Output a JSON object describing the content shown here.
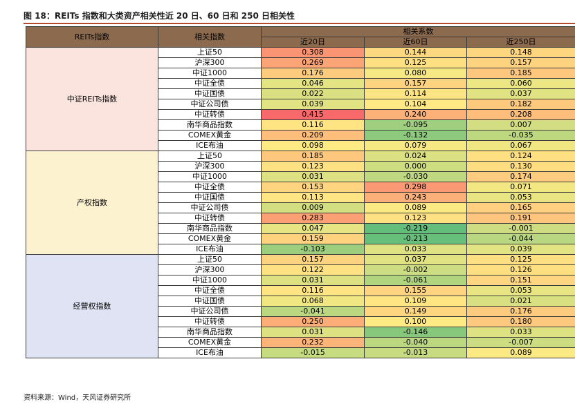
{
  "title": "图 18：REITs 指数和大类资产相关性近 20 日、60 日和 250 日相关性",
  "source": "资料来源：Wind，天风证券研究所",
  "headers": {
    "reits_index": "REITs指数",
    "related_index": "相关指数",
    "coef": "相关系数",
    "d20": "近20日",
    "d60": "近60日",
    "d250": "近250日"
  },
  "groups": [
    {
      "name": "中证REITs指数",
      "rows": [
        {
          "index": "上证50",
          "d20": "0.308",
          "d60": "0.144",
          "d250": "0.148"
        },
        {
          "index": "沪深300",
          "d20": "0.269",
          "d60": "0.125",
          "d250": "0.157"
        },
        {
          "index": "中证1000",
          "d20": "0.176",
          "d60": "0.080",
          "d250": "0.185"
        },
        {
          "index": "中证全债",
          "d20": "0.046",
          "d60": "0.157",
          "d250": "0.060"
        },
        {
          "index": "中证国债",
          "d20": "0.022",
          "d60": "0.114",
          "d250": "0.037"
        },
        {
          "index": "中证公司债",
          "d20": "0.039",
          "d60": "0.104",
          "d250": "0.182"
        },
        {
          "index": "中证转债",
          "d20": "0.415",
          "d60": "0.240",
          "d250": "0.208"
        },
        {
          "index": "南华商品指数",
          "d20": "0.116",
          "d60": "-0.095",
          "d250": "0.007"
        },
        {
          "index": "COMEX黄金",
          "d20": "0.209",
          "d60": "-0.132",
          "d250": "-0.035"
        },
        {
          "index": "ICE布油",
          "d20": "0.098",
          "d60": "0.079",
          "d250": "0.067"
        }
      ]
    },
    {
      "name": "产权指数",
      "rows": [
        {
          "index": "上证50",
          "d20": "0.185",
          "d60": "0.024",
          "d250": "0.124"
        },
        {
          "index": "沪深300",
          "d20": "0.123",
          "d60": "0.000",
          "d250": "0.130"
        },
        {
          "index": "中证1000",
          "d20": "0.031",
          "d60": "-0.030",
          "d250": "0.174"
        },
        {
          "index": "中证全债",
          "d20": "0.153",
          "d60": "0.298",
          "d250": "0.071"
        },
        {
          "index": "中证国债",
          "d20": "0.113",
          "d60": "0.243",
          "d250": "0.053"
        },
        {
          "index": "中证公司债",
          "d20": "0.009",
          "d60": "0.089",
          "d250": "0.165"
        },
        {
          "index": "中证转债",
          "d20": "0.283",
          "d60": "0.123",
          "d250": "0.191"
        },
        {
          "index": "南华商品指数",
          "d20": "0.047",
          "d60": "-0.219",
          "d250": "-0.001"
        },
        {
          "index": "COMEX黄金",
          "d20": "0.159",
          "d60": "-0.213",
          "d250": "-0.044"
        },
        {
          "index": "ICE布油",
          "d20": "-0.103",
          "d60": "0.033",
          "d250": "0.039"
        }
      ]
    },
    {
      "name": "经营权指数",
      "rows": [
        {
          "index": "上证50",
          "d20": "0.157",
          "d60": "0.037",
          "d250": "0.125"
        },
        {
          "index": "沪深300",
          "d20": "0.122",
          "d60": "-0.002",
          "d250": "0.126"
        },
        {
          "index": "中证1000",
          "d20": "0.031",
          "d60": "-0.061",
          "d250": "0.151"
        },
        {
          "index": "中证全债",
          "d20": "0.116",
          "d60": "0.155",
          "d250": "0.053"
        },
        {
          "index": "中证国债",
          "d20": "0.068",
          "d60": "0.109",
          "d250": "0.021"
        },
        {
          "index": "中证公司债",
          "d20": "-0.041",
          "d60": "0.149",
          "d250": "0.176"
        },
        {
          "index": "中证转债",
          "d20": "0.250",
          "d60": "0.100",
          "d250": "0.180"
        },
        {
          "index": "南华商品指数",
          "d20": "0.031",
          "d60": "-0.146",
          "d250": "0.033"
        },
        {
          "index": "COMEX黄金",
          "d20": "0.232",
          "d60": "-0.040",
          "d250": "-0.007"
        },
        {
          "index": "ICE布油",
          "d20": "-0.015",
          "d60": "-0.013",
          "d250": "0.089"
        }
      ]
    }
  ]
}
